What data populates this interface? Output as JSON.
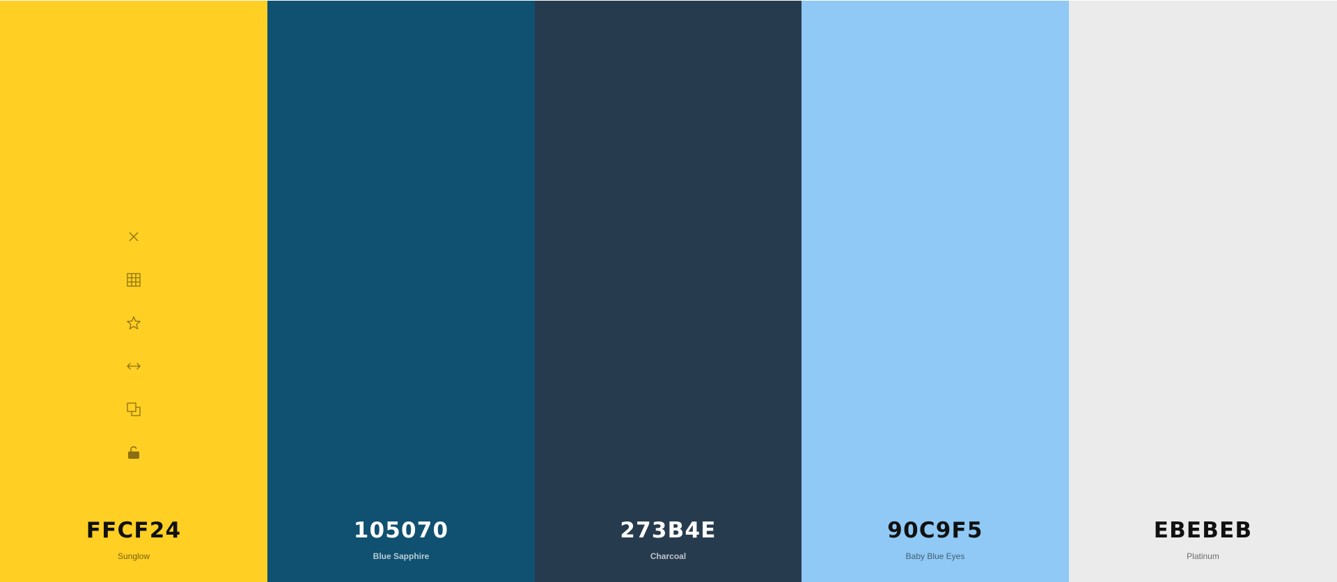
{
  "palette": {
    "colors": [
      {
        "hex": "FFCF24",
        "name": "Sunglow",
        "bg": "#FFCF24",
        "tone": "light"
      },
      {
        "hex": "105070",
        "name": "Blue Sapphire",
        "bg": "#105070",
        "tone": "dark"
      },
      {
        "hex": "273B4E",
        "name": "Charcoal",
        "bg": "#273B4E",
        "tone": "dark"
      },
      {
        "hex": "90C9F5",
        "name": "Baby Blue Eyes",
        "bg": "#90C9F5",
        "tone": "light"
      },
      {
        "hex": "EBEBEB",
        "name": "Platinum",
        "bg": "#EBEBEB",
        "tone": "light"
      }
    ]
  },
  "toolbar": {
    "icon_color": "#8a6f12",
    "tools": [
      {
        "icon": "close-icon",
        "label": "Remove color"
      },
      {
        "icon": "grid-icon",
        "label": "View shades"
      },
      {
        "icon": "star-icon",
        "label": "Save color"
      },
      {
        "icon": "drag-horizontal-icon",
        "label": "Drag"
      },
      {
        "icon": "copy-icon",
        "label": "Copy hex"
      },
      {
        "icon": "unlock-icon",
        "label": "Toggle lock"
      }
    ]
  }
}
